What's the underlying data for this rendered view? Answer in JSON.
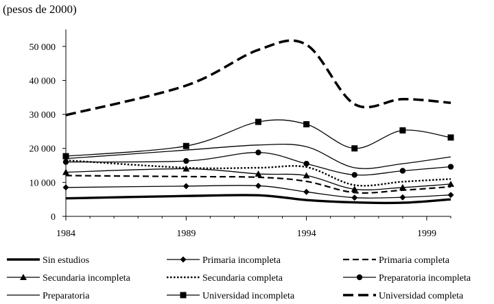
{
  "chart_data": {
    "type": "line",
    "title": "",
    "unit_label": "(pesos de 2000)",
    "xlabel": "",
    "ylabel": "(pesos de 2000)",
    "xlim": [
      1984,
      2000
    ],
    "ylim": [
      0,
      55000
    ],
    "x_ticks": [
      1984,
      1989,
      1994,
      1999
    ],
    "y_ticks": [
      0,
      10000,
      20000,
      30000,
      40000,
      50000
    ],
    "y_tick_labels": [
      "0",
      "10 000",
      "20 000",
      "30 000",
      "40 000",
      "50 000"
    ],
    "grid": false,
    "legend_position": "bottom",
    "series": [
      {
        "name": "Sin estudios",
        "style": "thick-solid",
        "marker": "none",
        "x": [
          1984,
          1989,
          1992,
          1994,
          1996,
          1998,
          2000
        ],
        "values": [
          5300,
          6000,
          6200,
          4800,
          4100,
          4000,
          5000
        ]
      },
      {
        "name": "Primaria incompleta",
        "style": "solid",
        "marker": "diamond",
        "x": [
          1984,
          1989,
          1992,
          1994,
          1996,
          1998,
          2000
        ],
        "values": [
          8500,
          8900,
          9000,
          7200,
          5500,
          5600,
          6300
        ]
      },
      {
        "name": "Primaria completa",
        "style": "dashed",
        "marker": "none",
        "x": [
          1984,
          1989,
          1992,
          1994,
          1996,
          1998,
          2000
        ],
        "values": [
          12000,
          11700,
          11500,
          10300,
          7000,
          7700,
          8700
        ]
      },
      {
        "name": "Secundaria incompleta",
        "style": "solid",
        "marker": "triangle",
        "x": [
          1984,
          1989,
          1992,
          1994,
          1996,
          1998,
          2000
        ],
        "values": [
          13000,
          14000,
          12500,
          12000,
          8000,
          8500,
          9500
        ]
      },
      {
        "name": "Secundaria completa",
        "style": "dotted",
        "marker": "none",
        "x": [
          1984,
          1989,
          1992,
          1994,
          1996,
          1998,
          2000
        ],
        "values": [
          16500,
          14300,
          14300,
          14500,
          9200,
          10200,
          11000
        ]
      },
      {
        "name": "Preparatoria incompleta",
        "style": "solid",
        "marker": "circle",
        "x": [
          1984,
          1989,
          1992,
          1994,
          1996,
          1998,
          2000
        ],
        "values": [
          16000,
          16300,
          18800,
          15500,
          12200,
          13400,
          14600
        ]
      },
      {
        "name": "Preparatoria",
        "style": "solid",
        "marker": "none",
        "x": [
          1984,
          1989,
          1992,
          1994,
          1996,
          1998,
          2000
        ],
        "values": [
          17000,
          19500,
          21000,
          20500,
          14300,
          15500,
          17500
        ]
      },
      {
        "name": "Universidad incompleta",
        "style": "solid",
        "marker": "square",
        "x": [
          1984,
          1989,
          1992,
          1994,
          1996,
          1998,
          2000
        ],
        "values": [
          17700,
          20700,
          27800,
          27100,
          20000,
          25300,
          23200
        ]
      },
      {
        "name": "Universidad completa",
        "style": "thick-dashed",
        "marker": "none",
        "x": [
          1984,
          1989,
          1992,
          1994,
          1996,
          1998,
          2000
        ],
        "values": [
          29800,
          38500,
          49000,
          50500,
          33000,
          34500,
          33400
        ]
      }
    ]
  }
}
